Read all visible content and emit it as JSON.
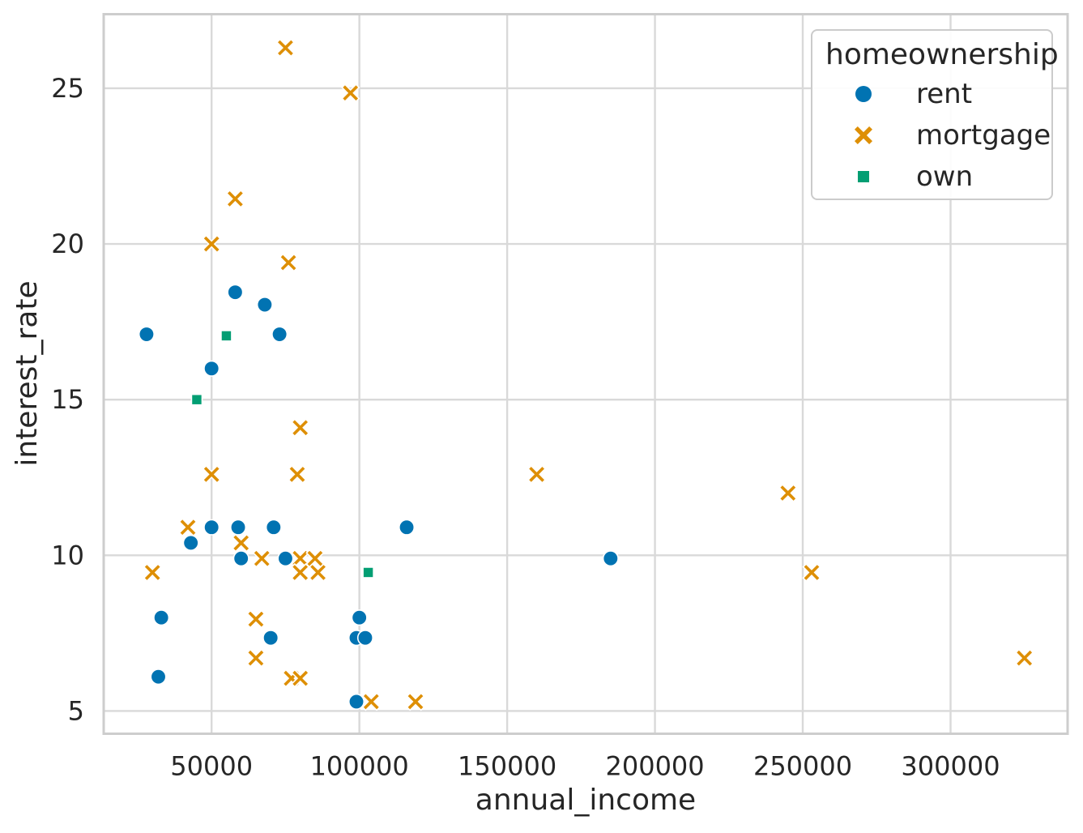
{
  "chart_data": {
    "type": "scatter",
    "title": "",
    "xlabel": "annual_income",
    "ylabel": "interest_rate",
    "xlim": [
      13500,
      339600
    ],
    "ylim": [
      4.27,
      27.38
    ],
    "x_ticks": [
      50000,
      100000,
      150000,
      200000,
      250000,
      300000
    ],
    "y_ticks": [
      5,
      10,
      15,
      20,
      25
    ],
    "grid": true,
    "grid_color": "#d9d9d9",
    "border_color": "#cdcdcd",
    "text_color": "#262626",
    "legend": {
      "title": "homeownership",
      "position": "upper-right"
    },
    "series": [
      {
        "name": "rent",
        "marker": "circle",
        "color": "#0173b2",
        "points": [
          [
            28000,
            17.1
          ],
          [
            58000,
            18.45
          ],
          [
            68000,
            18.05
          ],
          [
            73000,
            17.1
          ],
          [
            50000,
            16.0
          ],
          [
            50000,
            10.9
          ],
          [
            59000,
            10.9
          ],
          [
            71000,
            10.9
          ],
          [
            116000,
            10.9
          ],
          [
            43000,
            10.4
          ],
          [
            60000,
            9.9
          ],
          [
            75000,
            9.9
          ],
          [
            185000,
            9.9
          ],
          [
            33000,
            8.0
          ],
          [
            100000,
            8.0
          ],
          [
            70000,
            7.35
          ],
          [
            99000,
            7.35
          ],
          [
            102000,
            7.35
          ],
          [
            32000,
            6.1
          ],
          [
            99000,
            5.3
          ]
        ]
      },
      {
        "name": "mortgage",
        "marker": "x",
        "color": "#de8f05",
        "points": [
          [
            75000,
            26.3
          ],
          [
            97000,
            24.85
          ],
          [
            58000,
            21.45
          ],
          [
            50000,
            20.0
          ],
          [
            76000,
            19.4
          ],
          [
            80000,
            14.1
          ],
          [
            50000,
            12.6
          ],
          [
            79000,
            12.6
          ],
          [
            160000,
            12.6
          ],
          [
            245000,
            12.0
          ],
          [
            42000,
            10.9
          ],
          [
            60000,
            10.4
          ],
          [
            67000,
            9.9
          ],
          [
            80000,
            9.9
          ],
          [
            85000,
            9.9
          ],
          [
            30000,
            9.45
          ],
          [
            80000,
            9.45
          ],
          [
            86000,
            9.45
          ],
          [
            253000,
            9.45
          ],
          [
            65000,
            7.95
          ],
          [
            65000,
            6.7
          ],
          [
            325000,
            6.7
          ],
          [
            77000,
            6.05
          ],
          [
            80000,
            6.05
          ],
          [
            104000,
            5.3
          ],
          [
            119000,
            5.3
          ]
        ]
      },
      {
        "name": "own",
        "marker": "square",
        "color": "#029e73",
        "points": [
          [
            55000,
            17.05
          ],
          [
            45000,
            15.0
          ],
          [
            103000,
            9.45
          ]
        ]
      }
    ]
  }
}
